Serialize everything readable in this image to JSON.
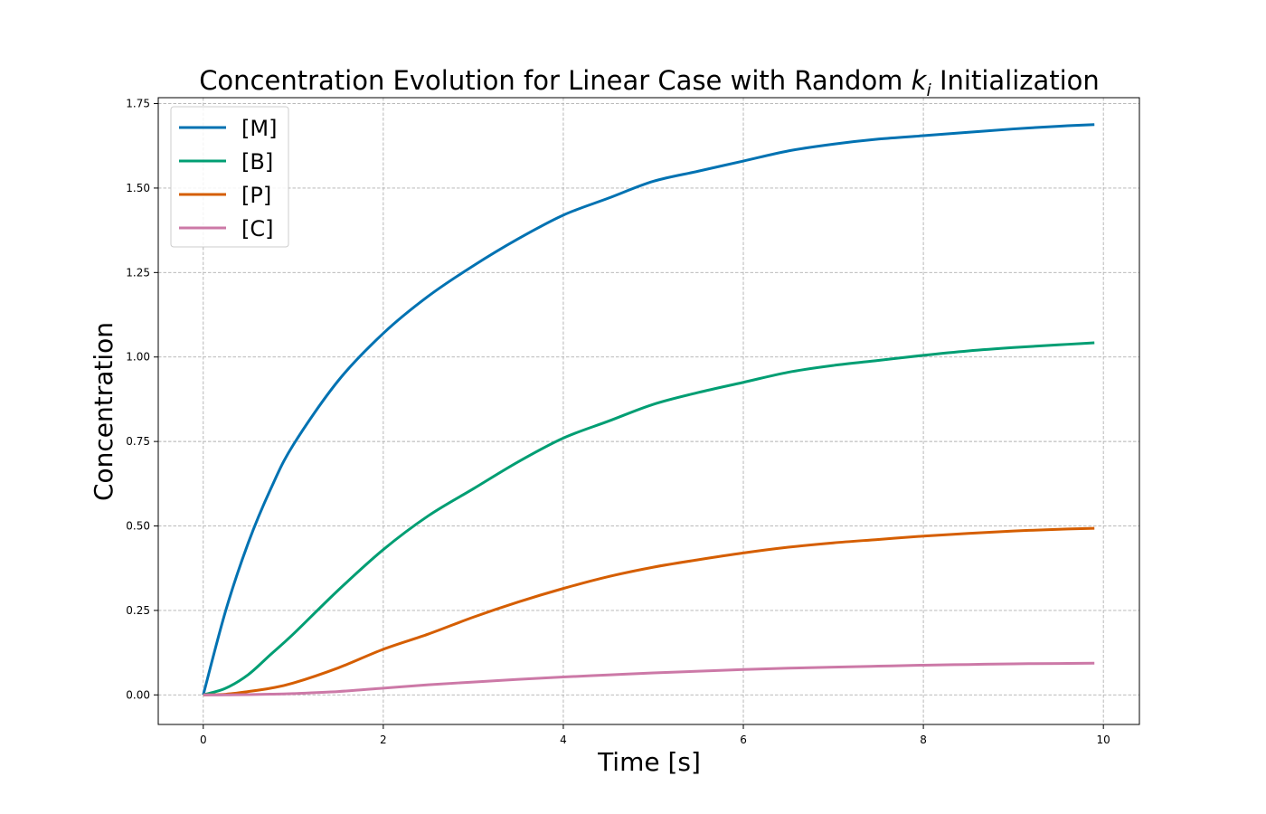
{
  "chart_data": {
    "type": "line",
    "title": {
      "prefix": "Concentration Evolution for Linear Case with Random ",
      "symbol": "k",
      "subscript": "i",
      "suffix": " Initialization"
    },
    "xlabel": "Time [s]",
    "ylabel": "Concentration",
    "xlim": [
      -0.5,
      10.4
    ],
    "ylim": [
      -0.0875,
      1.7675
    ],
    "xticks": [
      0,
      2,
      4,
      6,
      8,
      10
    ],
    "xtick_labels": [
      "0",
      "2",
      "4",
      "6",
      "8",
      "10"
    ],
    "yticks": [
      0.0,
      0.25,
      0.5,
      0.75,
      1.0,
      1.25,
      1.5,
      1.75
    ],
    "ytick_labels": [
      "0.00",
      "0.25",
      "0.50",
      "0.75",
      "1.00",
      "1.25",
      "1.50",
      "1.75"
    ],
    "grid": true,
    "legend_position": "top-left",
    "x": [
      0,
      0.25,
      0.5,
      0.75,
      1,
      1.5,
      2,
      2.5,
      3,
      3.5,
      4,
      4.5,
      5,
      5.5,
      6,
      6.5,
      7,
      7.5,
      8,
      8.5,
      9,
      9.5,
      9.9
    ],
    "series": [
      {
        "name": "[M]",
        "color": "#0072b2",
        "values": [
          0,
          0.25,
          0.45,
          0.61,
          0.74,
          0.93,
          1.07,
          1.18,
          1.27,
          1.35,
          1.42,
          1.47,
          1.52,
          1.55,
          1.58,
          1.61,
          1.63,
          1.645,
          1.655,
          1.665,
          1.675,
          1.683,
          1.688
        ]
      },
      {
        "name": "[B]",
        "color": "#009e73",
        "values": [
          0,
          0.02,
          0.06,
          0.12,
          0.18,
          0.31,
          0.43,
          0.53,
          0.61,
          0.69,
          0.76,
          0.81,
          0.86,
          0.895,
          0.925,
          0.955,
          0.975,
          0.99,
          1.005,
          1.018,
          1.028,
          1.036,
          1.042
        ]
      },
      {
        "name": "[P]",
        "color": "#d55e00",
        "values": [
          0,
          0.002,
          0.01,
          0.02,
          0.035,
          0.08,
          0.135,
          0.18,
          0.23,
          0.275,
          0.315,
          0.35,
          0.378,
          0.4,
          0.42,
          0.437,
          0.45,
          0.46,
          0.47,
          0.478,
          0.485,
          0.49,
          0.493
        ]
      },
      {
        "name": "[C]",
        "color": "#cc79a7",
        "values": [
          0,
          0,
          0.001,
          0.002,
          0.004,
          0.01,
          0.02,
          0.03,
          0.038,
          0.046,
          0.053,
          0.059,
          0.065,
          0.07,
          0.075,
          0.079,
          0.082,
          0.085,
          0.088,
          0.09,
          0.092,
          0.093,
          0.094
        ]
      }
    ]
  }
}
